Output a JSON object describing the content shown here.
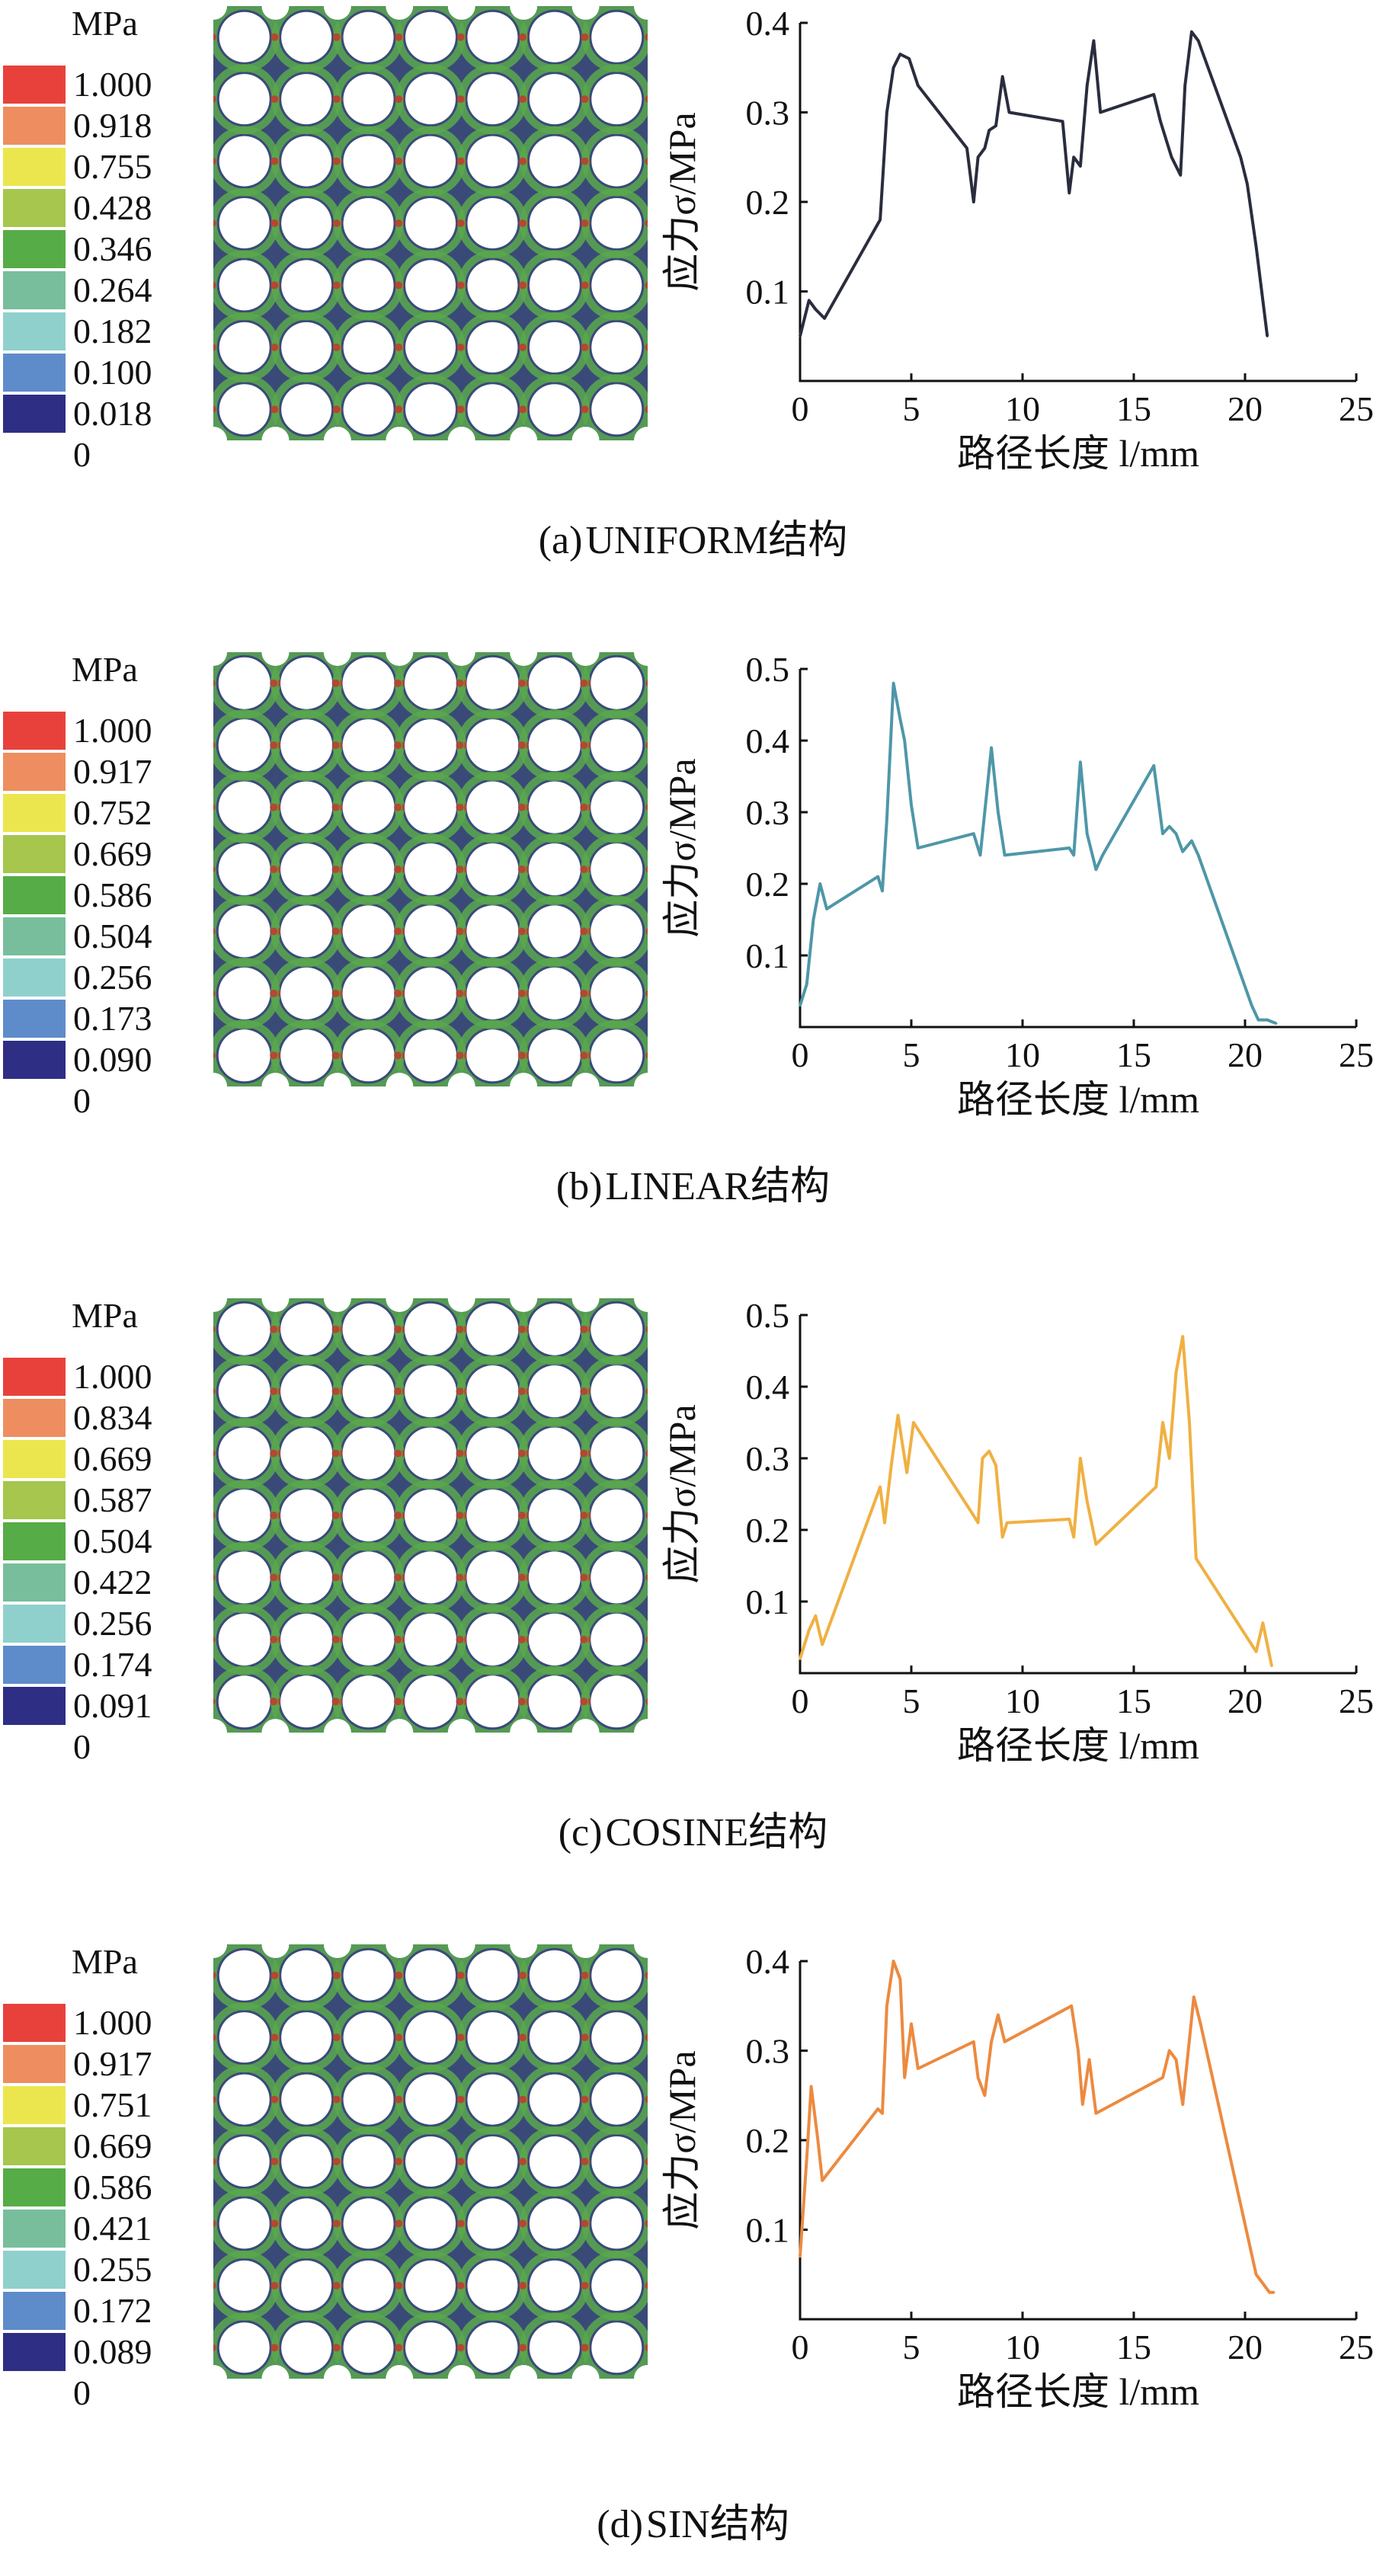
{
  "colors": {
    "palette": [
      "#e8413c",
      "#ee8e60",
      "#ece64e",
      "#a6c64e",
      "#56ac46",
      "#78be9c",
      "#90d0cc",
      "#5e8cca",
      "#2e2e84"
    ],
    "lattice_bg": "#3a4a78",
    "lattice_green": "#5aa84e",
    "lattice_red": "#c8322c",
    "axis": "#111111"
  },
  "panels": [
    {
      "legend": {
        "unit": "MPa",
        "labels": [
          "1.000",
          "0.918",
          "0.755",
          "0.428",
          "0.346",
          "0.264",
          "0.182",
          "0.100",
          "0.018",
          "0"
        ]
      },
      "caption": {
        "prefix": "(a)",
        "name": "UNIFORM",
        "suffix": "结构"
      },
      "chart_data": {
        "type": "line",
        "title": "",
        "xlabel": "路径长度 l/mm",
        "ylabel": "应力σ/MPa",
        "xlim": [
          0,
          25
        ],
        "ylim": [
          0,
          0.4
        ],
        "xticks": [
          0,
          5,
          10,
          15,
          20,
          25
        ],
        "yticks": [
          0.1,
          0.2,
          0.3,
          0.4
        ],
        "color": "#2a2d3e",
        "series": [
          {
            "name": "UNIFORM",
            "x": [
              0,
              0.4,
              0.7,
              1.1,
              3.6,
              3.9,
              4.2,
              4.5,
              4.9,
              5.3,
              7.5,
              7.8,
              8.0,
              8.3,
              8.5,
              8.8,
              9.1,
              9.4,
              11.8,
              12.1,
              12.3,
              12.6,
              12.9,
              13.2,
              13.5,
              15.9,
              16.2,
              16.7,
              17.1,
              17.3,
              17.6,
              17.9,
              19.8,
              20.1,
              20.5,
              21.0
            ],
            "y": [
              0.05,
              0.09,
              0.08,
              0.07,
              0.18,
              0.3,
              0.35,
              0.365,
              0.36,
              0.33,
              0.26,
              0.2,
              0.25,
              0.26,
              0.28,
              0.285,
              0.34,
              0.3,
              0.29,
              0.21,
              0.25,
              0.24,
              0.33,
              0.38,
              0.3,
              0.32,
              0.29,
              0.25,
              0.23,
              0.33,
              0.39,
              0.38,
              0.25,
              0.22,
              0.15,
              0.05
            ]
          }
        ]
      }
    },
    {
      "legend": {
        "unit": "MPa",
        "labels": [
          "1.000",
          "0.917",
          "0.752",
          "0.669",
          "0.586",
          "0.504",
          "0.256",
          "0.173",
          "0.090",
          "0"
        ]
      },
      "caption": {
        "prefix": "(b)",
        "name": "LINEAR",
        "suffix": "结构"
      },
      "chart_data": {
        "type": "line",
        "title": "",
        "xlabel": "路径长度 l/mm",
        "ylabel": "应力σ/MPa",
        "xlim": [
          0,
          25
        ],
        "ylim": [
          0,
          0.5
        ],
        "xticks": [
          0,
          5,
          10,
          15,
          20,
          25
        ],
        "yticks": [
          0.1,
          0.2,
          0.3,
          0.4,
          0.5
        ],
        "color": "#4e97a8",
        "series": [
          {
            "name": "LINEAR",
            "x": [
              0,
              0.3,
              0.6,
              0.9,
              1.2,
              3.5,
              3.7,
              3.9,
              4.2,
              4.5,
              4.7,
              5.0,
              5.3,
              7.8,
              8.1,
              8.4,
              8.6,
              8.9,
              9.2,
              12.1,
              12.3,
              12.6,
              12.9,
              13.3,
              13.6,
              15.9,
              16.3,
              16.6,
              16.9,
              17.2,
              17.6,
              17.9,
              20.3,
              20.6,
              21.0,
              21.4
            ],
            "y": [
              0.03,
              0.06,
              0.15,
              0.2,
              0.165,
              0.21,
              0.19,
              0.29,
              0.48,
              0.43,
              0.4,
              0.31,
              0.25,
              0.27,
              0.24,
              0.33,
              0.39,
              0.3,
              0.24,
              0.25,
              0.24,
              0.37,
              0.27,
              0.22,
              0.24,
              0.365,
              0.27,
              0.28,
              0.27,
              0.245,
              0.26,
              0.24,
              0.03,
              0.01,
              0.01,
              0.005
            ]
          }
        ]
      }
    },
    {
      "legend": {
        "unit": "MPa",
        "labels": [
          "1.000",
          "0.834",
          "0.669",
          "0.587",
          "0.504",
          "0.422",
          "0.256",
          "0.174",
          "0.091",
          "0"
        ]
      },
      "caption": {
        "prefix": "(c)",
        "name": "COSINE",
        "suffix": "结构"
      },
      "chart_data": {
        "type": "line",
        "title": "",
        "xlabel": "路径长度 l/mm",
        "ylabel": "应力σ/MPa",
        "xlim": [
          0,
          25
        ],
        "ylim": [
          0,
          0.5
        ],
        "xticks": [
          0,
          5,
          10,
          15,
          20,
          25
        ],
        "yticks": [
          0.1,
          0.2,
          0.3,
          0.4,
          0.5
        ],
        "color": "#f0b042",
        "series": [
          {
            "name": "COSINE",
            "x": [
              0,
              0.4,
              0.7,
              1.0,
              3.6,
              3.8,
              4.1,
              4.4,
              4.6,
              4.8,
              5.1,
              7.8,
              8.0,
              8.2,
              8.5,
              8.8,
              9.1,
              9.3,
              12.1,
              12.3,
              12.6,
              12.9,
              13.3,
              16.0,
              16.3,
              16.6,
              16.9,
              17.2,
              17.5,
              17.8,
              20.5,
              20.8,
              21.2
            ],
            "y": [
              0.02,
              0.06,
              0.08,
              0.04,
              0.26,
              0.21,
              0.29,
              0.36,
              0.32,
              0.28,
              0.35,
              0.22,
              0.21,
              0.3,
              0.31,
              0.29,
              0.19,
              0.21,
              0.215,
              0.19,
              0.3,
              0.24,
              0.18,
              0.26,
              0.35,
              0.3,
              0.42,
              0.47,
              0.35,
              0.16,
              0.03,
              0.07,
              0.01
            ]
          }
        ]
      }
    },
    {
      "legend": {
        "unit": "MPa",
        "labels": [
          "1.000",
          "0.917",
          "0.751",
          "0.669",
          "0.586",
          "0.421",
          "0.255",
          "0.172",
          "0.089",
          "0"
        ]
      },
      "caption": {
        "prefix": "(d)",
        "name": "SIN",
        "suffix": "结构"
      },
      "chart_data": {
        "type": "line",
        "title": "",
        "xlabel": "路径长度 l/mm",
        "ylabel": "应力σ/MPa",
        "xlim": [
          0,
          25
        ],
        "ylim": [
          0,
          0.4
        ],
        "xticks": [
          0,
          5,
          10,
          15,
          20,
          25
        ],
        "yticks": [
          0.1,
          0.2,
          0.3,
          0.4
        ],
        "color": "#ec8a40",
        "series": [
          {
            "name": "SIN",
            "x": [
              0,
              0.3,
              0.5,
              0.8,
              1.0,
              3.5,
              3.7,
              3.9,
              4.2,
              4.5,
              4.7,
              5.0,
              5.3,
              7.8,
              8.0,
              8.3,
              8.6,
              8.9,
              9.2,
              12.2,
              12.5,
              12.7,
              13.0,
              13.3,
              16.3,
              16.6,
              16.9,
              17.2,
              17.7,
              18.0,
              20.5,
              20.8,
              21.1,
              21.3
            ],
            "y": [
              0.07,
              0.18,
              0.26,
              0.2,
              0.155,
              0.235,
              0.23,
              0.35,
              0.4,
              0.38,
              0.27,
              0.33,
              0.28,
              0.31,
              0.27,
              0.25,
              0.31,
              0.34,
              0.31,
              0.35,
              0.3,
              0.24,
              0.29,
              0.23,
              0.27,
              0.3,
              0.29,
              0.24,
              0.36,
              0.33,
              0.05,
              0.04,
              0.03,
              0.03
            ]
          }
        ]
      }
    }
  ]
}
